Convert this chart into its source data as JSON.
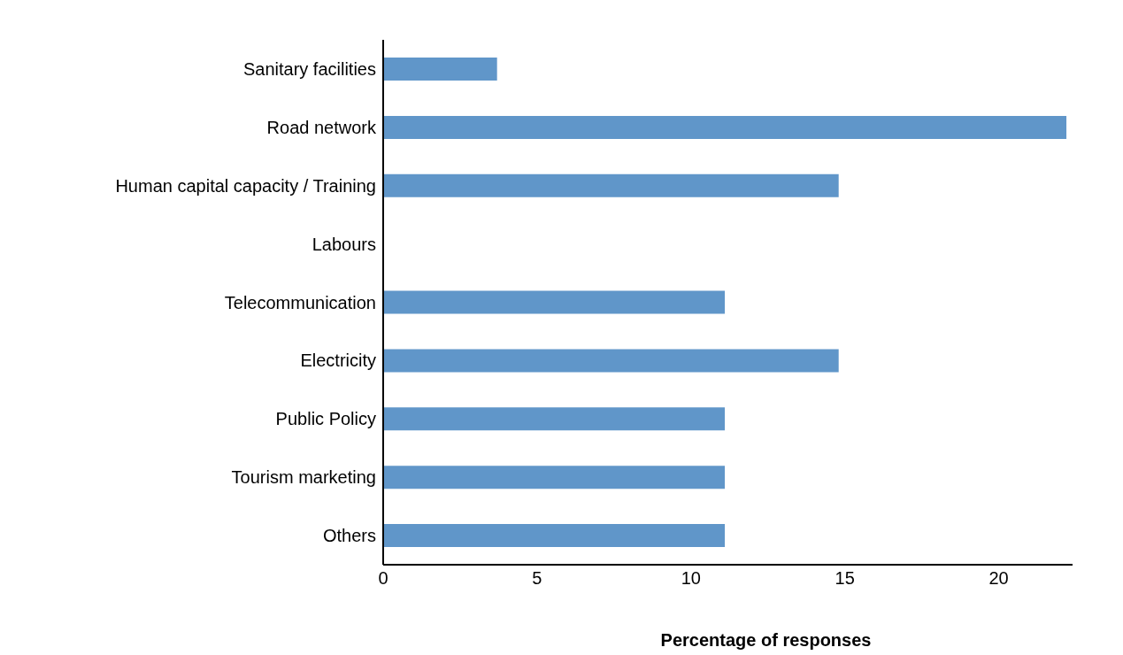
{
  "chart_data": {
    "type": "bar",
    "orientation": "horizontal",
    "xlabel": "Percentage of responses",
    "categories": [
      "Sanitary facilities",
      "Road network",
      "Human capital capacity / Training",
      "Labours",
      "Telecommunication",
      "Electricity",
      "Public Policy",
      "Tourism marketing",
      "Others"
    ],
    "values": [
      3.7,
      22.2,
      14.8,
      0,
      11.1,
      14.8,
      11.1,
      11.1,
      11.1
    ],
    "color": "#6096c9",
    "xlim": [
      0,
      22.4
    ],
    "xticks": [
      0,
      5,
      10,
      15,
      20
    ],
    "grid": false,
    "legend": false
  }
}
